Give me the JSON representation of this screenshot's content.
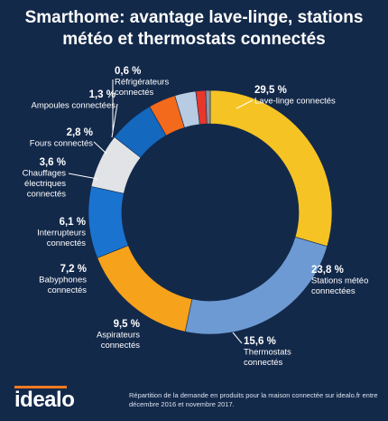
{
  "title": {
    "line1": "Smarthome: avantage lave-linge, stations",
    "line2": "météo et thermostats connectés"
  },
  "chart_data": {
    "type": "pie",
    "variant": "donut",
    "title": "Smarthome: avantage lave-linge, stations météo et thermostats connectés",
    "unit": "%",
    "slices": [
      {
        "label": [
          "Lave-linge connectés"
        ],
        "value": 29.5,
        "value_label": "29,5 %",
        "color": "#f5c324"
      },
      {
        "label": [
          "Stations météo",
          "connectées"
        ],
        "value": 23.8,
        "value_label": "23,8 %",
        "color": "#6d9ad3"
      },
      {
        "label": [
          "Thermostats",
          "connectés"
        ],
        "value": 15.6,
        "value_label": "15,6 %",
        "color": "#f7a21b"
      },
      {
        "label": [
          "Aspirateurs",
          "connectés"
        ],
        "value": 9.5,
        "value_label": "9,5 %",
        "color": "#1a73cf"
      },
      {
        "label": [
          "Babyphones",
          "connectés"
        ],
        "value": 7.2,
        "value_label": "7,2 %",
        "color": "#e1e3e6"
      },
      {
        "label": [
          "Interrupteurs",
          "connectés"
        ],
        "value": 6.1,
        "value_label": "6,1 %",
        "color": "#1468be"
      },
      {
        "label": [
          "Chauffages",
          "électriques",
          "connectés"
        ],
        "value": 3.6,
        "value_label": "3,6 %",
        "color": "#f36a1c"
      },
      {
        "label": [
          "Fours connectés"
        ],
        "value": 2.8,
        "value_label": "2,8 %",
        "color": "#b7cbe2"
      },
      {
        "label": [
          "Ampoules connectées"
        ],
        "value": 1.3,
        "value_label": "1,3 %",
        "color": "#e8372a"
      },
      {
        "label": [
          "Réfrigérateurs",
          "connectés"
        ],
        "value": 0.6,
        "value_label": "0,6 %",
        "color": "#8d96a3"
      }
    ]
  },
  "footer": {
    "logo": "idealo",
    "note": "Répartition de la demande en produits pour la maison connectée sur idealo.fr entre décembre 2016 et novembre 2017."
  },
  "colors": {
    "background": "#13294a",
    "leader_line": "#ffffff",
    "logo_accent": "#f47a20"
  }
}
